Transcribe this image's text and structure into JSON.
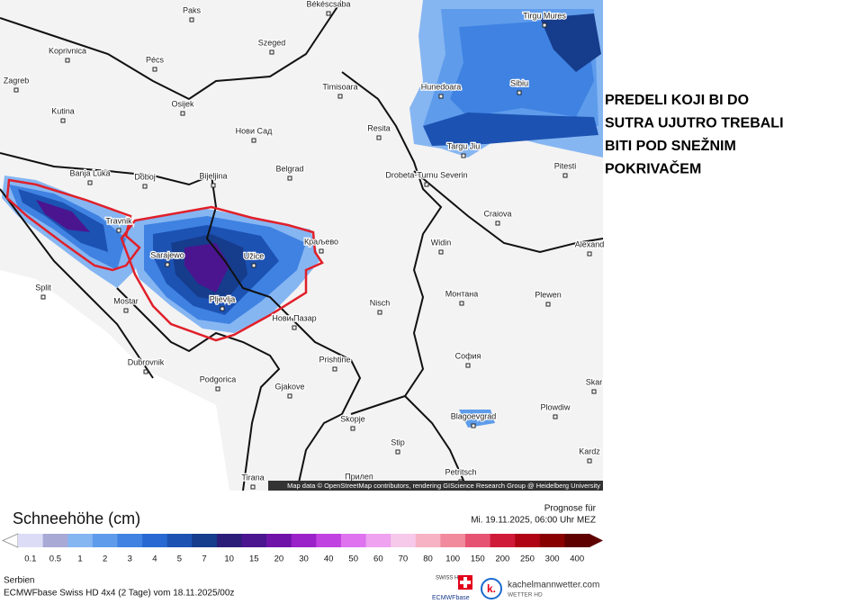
{
  "map": {
    "cities": [
      "Paks",
      "Békéscsaba",
      "Tirgu Mures",
      "Koprivnica",
      "Szeged",
      "Pécs",
      "Zagreb",
      "Timisoara",
      "Hunedoara",
      "Sibiu",
      "Osijek",
      "Kutina",
      "Нови Сад",
      "Resita",
      "Targu Jiu",
      "Pitesti",
      "Banja Luka",
      "Doboj",
      "Bijeljina",
      "Belgrad",
      "Drobeta-Turnu Severin",
      "Travnik",
      "Краљево",
      "Craiova",
      "Widin",
      "Alexand",
      "Sarajewo",
      "Užice",
      "Split",
      "Mostar",
      "Pljevlja",
      "Nisch",
      "Монтана",
      "Plewen",
      "Нови Пазар",
      "Dubrovnik",
      "Prishtine",
      "София",
      "Podgorica",
      "Gjakove",
      "Skar",
      "Plowdiw",
      "Blagoevgrad",
      "Skopje",
      "Stip",
      "Kardz",
      "Tirana",
      "Прилеп",
      "Petritsch"
    ],
    "attribution": "Map data © OpenStreetMap contributors, rendering GIScience Research Group @ Heidelberg University"
  },
  "annotation": {
    "lines": [
      "PREDELI KOJI BI DO",
      "SUTRA UJUTRO TREBALI",
      "BITI POD SNEŽNIM",
      "POKRIVAČEM"
    ]
  },
  "legend": {
    "title": "Schneehöhe (cm)",
    "forecast_label": "Prognose für",
    "forecast_time": "Mi. 19.11.2025, 06:00 Uhr MEZ",
    "stops": [
      {
        "label": "0.1",
        "color": "#dcdcf6"
      },
      {
        "label": "0.5",
        "color": "#a9a9d6"
      },
      {
        "label": "1",
        "color": "#86b6f2"
      },
      {
        "label": "2",
        "color": "#5e9ceb"
      },
      {
        "label": "3",
        "color": "#3f82e2"
      },
      {
        "label": "4",
        "color": "#2768d2"
      },
      {
        "label": "5",
        "color": "#1c52b2"
      },
      {
        "label": "7",
        "color": "#163c8c"
      },
      {
        "label": "10",
        "color": "#2c1e78"
      },
      {
        "label": "15",
        "color": "#4b1590"
      },
      {
        "label": "20",
        "color": "#6f12a8"
      },
      {
        "label": "30",
        "color": "#9a22c8"
      },
      {
        "label": "40",
        "color": "#c042e0"
      },
      {
        "label": "50",
        "color": "#de72ef"
      },
      {
        "label": "60",
        "color": "#eea2f0"
      },
      {
        "label": "70",
        "color": "#f6c8ea"
      },
      {
        "label": "80",
        "color": "#f7b2c4"
      },
      {
        "label": "100",
        "color": "#f08a9c"
      },
      {
        "label": "150",
        "color": "#e65272"
      },
      {
        "label": "200",
        "color": "#d01a3a"
      },
      {
        "label": "250",
        "color": "#b00414"
      },
      {
        "label": "300",
        "color": "#880000"
      },
      {
        "label": "400",
        "color": "#5e0000"
      }
    ],
    "region": "Serbien",
    "model": "ECMWFbase Swiss HD 4x4 (2 Tage) vom 18.11.2025/00z",
    "badge_lines": [
      "SWISS HD",
      "ECMWFbase"
    ],
    "brand": "kachelmannwetter.com",
    "brand_sub": "WETTER HD"
  }
}
